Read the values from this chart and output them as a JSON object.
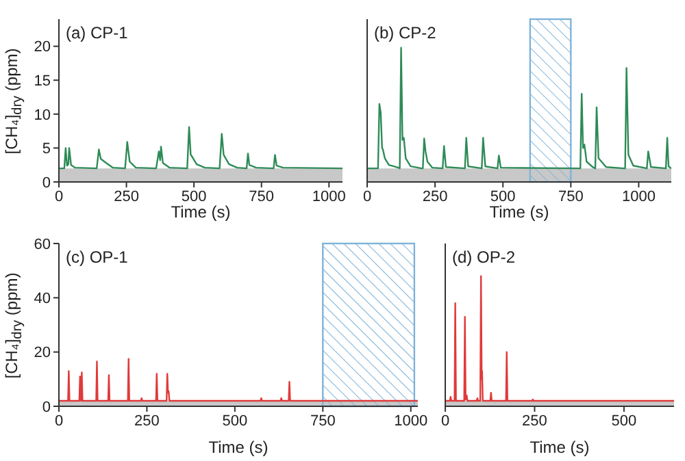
{
  "chart_data": [
    {
      "type": "line",
      "title": "(a) CP-1",
      "xlabel": "Time (s)",
      "ylabel": "[CH₄]$_{dry}$ (ppm)",
      "color": "#2e8b57",
      "x": [
        0,
        20,
        25,
        30,
        35,
        38,
        45,
        60,
        140,
        148,
        155,
        175,
        200,
        245,
        253,
        262,
        285,
        360,
        370,
        375,
        378,
        385,
        410,
        475,
        482,
        488,
        492,
        510,
        540,
        595,
        603,
        610,
        630,
        660,
        695,
        700,
        705,
        730,
        795,
        800,
        806,
        830,
        1050
      ],
      "values": [
        2,
        2,
        5,
        2.4,
        2.6,
        5,
        2.5,
        2.1,
        2,
        4.8,
        3.4,
        2.8,
        2.1,
        2,
        5.9,
        3,
        2.1,
        2,
        4.5,
        3.2,
        5.2,
        2.8,
        2.1,
        2,
        8.1,
        4,
        3.8,
        2.6,
        2.1,
        2,
        7.1,
        4,
        2.6,
        2.1,
        2,
        4.2,
        2.5,
        2.1,
        2,
        4,
        2.4,
        2.1,
        2
      ],
      "xlim": [
        0,
        1050
      ],
      "xticks": [
        0,
        250,
        500,
        750,
        1000
      ],
      "ylim": [
        0,
        24
      ],
      "yticks": [
        0,
        5,
        10,
        15,
        20
      ],
      "bands": [
        {
          "axis": "y",
          "from": 0,
          "to": 2,
          "color": "#c8c8c8"
        }
      ]
    },
    {
      "type": "line",
      "title": "(b) CP-2",
      "xlabel": "Time (s)",
      "color": "#2e8b57",
      "x": [
        0,
        40,
        45,
        50,
        55,
        58,
        65,
        80,
        115,
        120,
        125,
        130,
        135,
        142,
        160,
        200,
        205,
        210,
        215,
        222,
        240,
        278,
        283,
        290,
        360,
        365,
        372,
        422,
        427,
        435,
        480,
        485,
        492,
        780,
        785,
        790,
        795,
        800,
        808,
        830,
        840,
        845,
        852,
        880,
        945,
        950,
        955,
        962,
        980,
        1030,
        1035,
        1045,
        1100,
        1105,
        1110,
        1120
      ],
      "values": [
        2,
        2,
        11.5,
        10.2,
        5,
        4.8,
        3.5,
        2.5,
        2.1,
        2,
        19.8,
        6.2,
        6.5,
        3.5,
        2.3,
        2,
        2,
        6.4,
        4.5,
        3,
        2.1,
        2,
        5.3,
        2.2,
        2,
        6.5,
        2.3,
        2,
        6.5,
        2.3,
        2,
        3.9,
        2.1,
        2,
        2,
        13,
        5,
        5.5,
        3,
        2.2,
        2,
        11,
        3.5,
        2.2,
        2,
        2,
        16.8,
        4,
        2.4,
        2,
        4.5,
        2.2,
        2,
        6.5,
        2.3,
        2
      ],
      "xlim": [
        0,
        1120
      ],
      "xticks": [
        0,
        250,
        500,
        750,
        1000
      ],
      "ylim": [
        0,
        24
      ],
      "yticks": [
        0,
        5,
        10,
        15,
        20
      ],
      "tick_labels": "x",
      "bands": [
        {
          "axis": "y",
          "from": 0,
          "to": 2,
          "color": "#c8c8c8"
        },
        {
          "axis": "x",
          "from": 600,
          "to": 750,
          "color": "#7fb3d9"
        }
      ]
    },
    {
      "type": "line",
      "title": "(c) OP-1",
      "xlabel": "Time (s)",
      "ylabel": "[CH₄]$_{dry}$ (ppm)",
      "color": "#e03a3a",
      "x": [
        0,
        26,
        28,
        30,
        58,
        60,
        62,
        63,
        65,
        67,
        106,
        108,
        110,
        140,
        142,
        144,
        196,
        198,
        200,
        233,
        235,
        237,
        276,
        278,
        280,
        306,
        308,
        310,
        312,
        314,
        573,
        575,
        577,
        630,
        632,
        634,
        653,
        655,
        657,
        1020
      ],
      "values": [
        2,
        2,
        13,
        2,
        2,
        11,
        2.5,
        2,
        12.5,
        2,
        2,
        16.5,
        2,
        2,
        11.5,
        2,
        2,
        17.5,
        2,
        2,
        3,
        2,
        2,
        12,
        2,
        2,
        12,
        5,
        5.5,
        2,
        2,
        3,
        2,
        2,
        3,
        2,
        2,
        9,
        2,
        2
      ],
      "xlim": [
        0,
        1020
      ],
      "xticks": [
        0,
        250,
        500,
        750,
        1000
      ],
      "ylim": [
        0,
        60
      ],
      "yticks": [
        0,
        20,
        40,
        60
      ],
      "bands": [
        {
          "axis": "y",
          "from": 0,
          "to": 2,
          "color": "#c8c8c8"
        },
        {
          "axis": "x",
          "from": 750,
          "to": 1010,
          "color": "#7fb3d9"
        }
      ]
    },
    {
      "type": "line",
      "title": "(d) OP-2",
      "xlabel": "Time (s)",
      "color": "#e03a3a",
      "x": [
        0,
        13,
        15,
        17,
        26,
        28,
        30,
        53,
        55,
        57,
        60,
        62,
        88,
        90,
        92,
        98,
        100,
        102,
        103,
        105,
        126,
        128,
        130,
        170,
        172,
        174,
        243,
        245,
        247,
        640
      ],
      "values": [
        2,
        2,
        3.5,
        2,
        2,
        38,
        2,
        2,
        33,
        2.5,
        4,
        2,
        2,
        3,
        2,
        2,
        48,
        10,
        13,
        2,
        2,
        5,
        2,
        2,
        20,
        2,
        2,
        2.5,
        2,
        2
      ],
      "xlim": [
        0,
        640
      ],
      "xticks": [
        0,
        250,
        500
      ],
      "ylim": [
        0,
        60
      ],
      "yticks": [
        0,
        20,
        40,
        60
      ],
      "tick_labels": "x",
      "bands": [
        {
          "axis": "y",
          "from": 0,
          "to": 2,
          "color": "#c8c8c8"
        }
      ]
    }
  ]
}
